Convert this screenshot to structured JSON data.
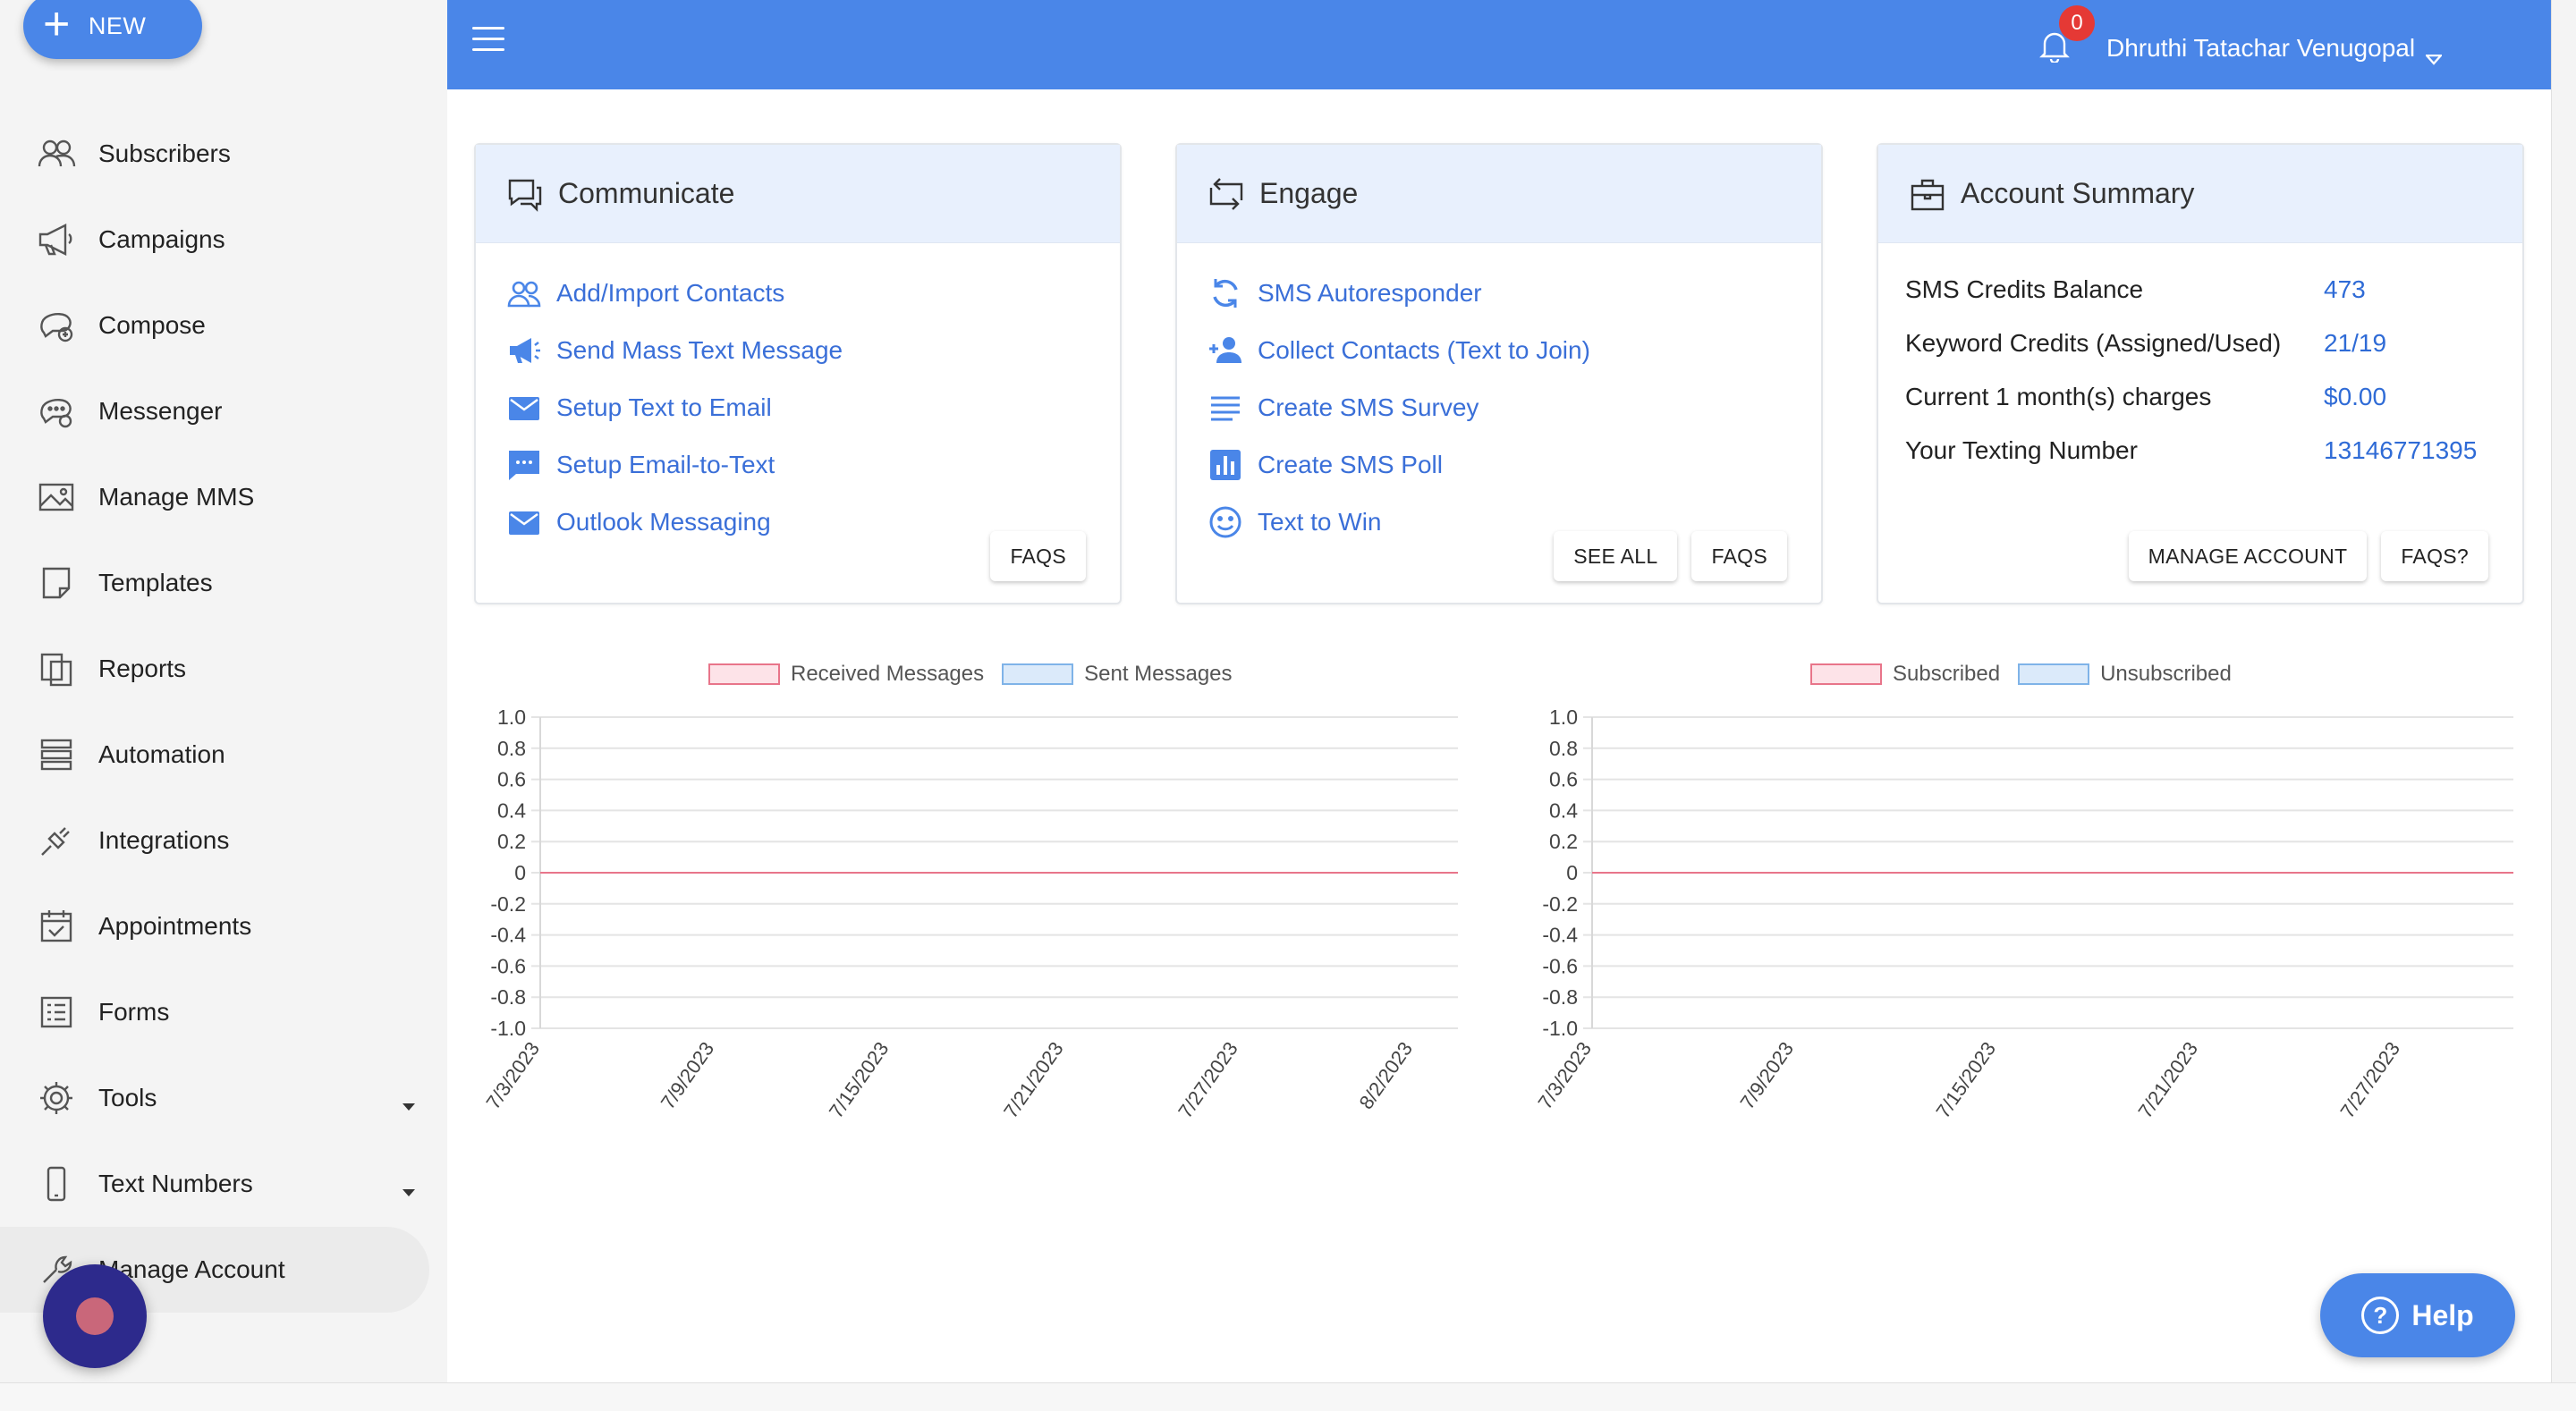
{
  "sidebar": {
    "new_label": "NEW",
    "items": [
      {
        "label": "Subscribers",
        "icon": "people-icon"
      },
      {
        "label": "Campaigns",
        "icon": "megaphone-icon"
      },
      {
        "label": "Compose",
        "icon": "compose-icon"
      },
      {
        "label": "Messenger",
        "icon": "messenger-icon"
      },
      {
        "label": "Manage MMS",
        "icon": "image-icon"
      },
      {
        "label": "Templates",
        "icon": "template-icon"
      },
      {
        "label": "Reports",
        "icon": "reports-icon"
      },
      {
        "label": "Automation",
        "icon": "automation-icon"
      },
      {
        "label": "Integrations",
        "icon": "plug-icon"
      },
      {
        "label": "Appointments",
        "icon": "calendar-icon"
      },
      {
        "label": "Forms",
        "icon": "form-icon"
      },
      {
        "label": "Tools",
        "icon": "gear-icon"
      },
      {
        "label": "Text Numbers",
        "icon": "phone-icon"
      },
      {
        "label": "Manage Account",
        "icon": "wrench-icon"
      }
    ]
  },
  "topbar": {
    "notification_count": "0",
    "user_name": "Dhruthi Tatachar Venugopal"
  },
  "communicate": {
    "title": "Communicate",
    "links": [
      "Add/Import Contacts",
      "Send Mass Text Message",
      "Setup Text to Email",
      "Setup Email-to-Text",
      "Outlook Messaging"
    ],
    "faqs_label": "FAQS"
  },
  "engage": {
    "title": "Engage",
    "links": [
      "SMS Autoresponder",
      "Collect Contacts (Text to Join)",
      "Create SMS Survey",
      "Create SMS Poll",
      "Text to Win"
    ],
    "see_all_label": "SEE ALL",
    "faqs_label": "FAQS"
  },
  "account": {
    "title": "Account Summary",
    "rows": [
      {
        "label": "SMS Credits Balance",
        "value": "473"
      },
      {
        "label": "Keyword Credits (Assigned/Used)",
        "value": "21/19"
      },
      {
        "label": "Current 1 month(s) charges",
        "value": "$0.00"
      },
      {
        "label": "Your Texting Number",
        "value": "13146771395"
      }
    ],
    "manage_label": "MANAGE ACCOUNT",
    "faqs_label": "FAQS?"
  },
  "colors": {
    "primary": "#4a86e8",
    "link": "#3a6fd8",
    "red_series": "#e8758a",
    "blue_series": "#7fb3e8"
  },
  "chart_data": [
    {
      "type": "line",
      "series": [
        {
          "name": "Received Messages",
          "values": [
            0,
            0,
            0,
            0,
            0,
            0
          ]
        },
        {
          "name": "Sent Messages",
          "values": [
            0,
            0,
            0,
            0,
            0,
            0
          ]
        }
      ],
      "x": [
        "7/3/2023",
        "7/9/2023",
        "7/15/2023",
        "7/21/2023",
        "7/27/2023",
        "8/2/2023"
      ],
      "yticks": [
        "1.0",
        "0.8",
        "0.6",
        "0.4",
        "0.2",
        "0",
        "-0.2",
        "-0.4",
        "-0.6",
        "-0.8",
        "-1.0"
      ],
      "ylim": [
        -1,
        1
      ],
      "legend": "top"
    },
    {
      "type": "line",
      "series": [
        {
          "name": "Subscribed",
          "values": [
            0,
            0,
            0,
            0,
            0
          ]
        },
        {
          "name": "Unsubscribed",
          "values": [
            0,
            0,
            0,
            0,
            0
          ]
        }
      ],
      "x": [
        "7/3/2023",
        "7/9/2023",
        "7/15/2023",
        "7/21/2023",
        "7/27/2023"
      ],
      "yticks": [
        "1.0",
        "0.8",
        "0.6",
        "0.4",
        "0.2",
        "0",
        "-0.2",
        "-0.4",
        "-0.6",
        "-0.8",
        "-1.0"
      ],
      "ylim": [
        -1,
        1
      ],
      "legend": "top"
    }
  ],
  "help": {
    "label": "Help"
  }
}
